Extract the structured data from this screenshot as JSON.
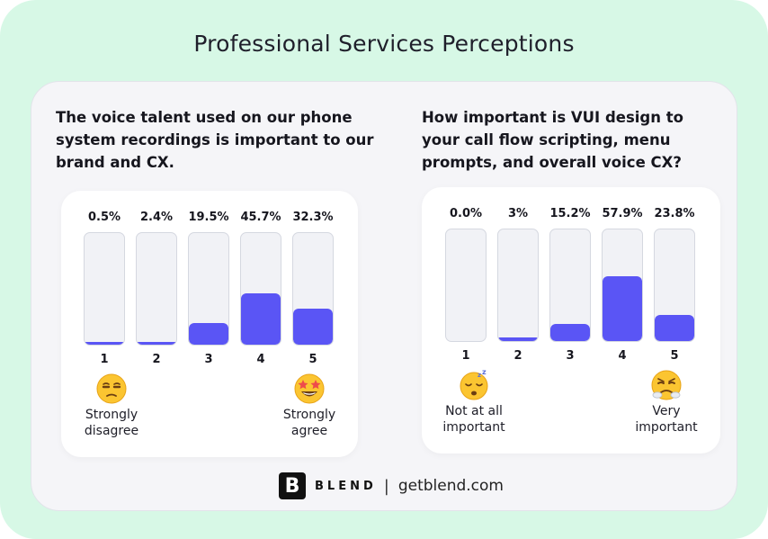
{
  "title": "Professional Services Perceptions",
  "footer": {
    "logo_letter": "B",
    "brand": "BLEND",
    "separator": "|",
    "site": "getblend.com"
  },
  "colors": {
    "accent": "#5a55f5",
    "background": "#d7f8e6",
    "track": "#f1f2f6"
  },
  "chart_data": [
    {
      "type": "bar",
      "title": "The voice talent used on our phone system recordings is important to our brand and CX.",
      "categories": [
        "1",
        "2",
        "3",
        "4",
        "5"
      ],
      "values": [
        0.5,
        2.4,
        19.5,
        45.7,
        32.3
      ],
      "value_labels": [
        "0.5%",
        "2.4%",
        "19.5%",
        "45.7%",
        "32.3%"
      ],
      "ylim": [
        0,
        100
      ],
      "anchors": {
        "low": {
          "label": "Strongly disagree",
          "lines": [
            "Strongly",
            "disagree"
          ],
          "icon": "unamused-face-icon"
        },
        "high": {
          "label": "Strongly agree",
          "lines": [
            "Strongly",
            "agree"
          ],
          "icon": "star-struck-face-icon"
        }
      }
    },
    {
      "type": "bar",
      "title": "How important is VUI design to your call flow scripting, menu prompts, and overall voice CX?",
      "categories": [
        "1",
        "2",
        "3",
        "4",
        "5"
      ],
      "values": [
        0.0,
        3,
        15.2,
        57.9,
        23.8
      ],
      "value_labels": [
        "0.0%",
        "3%",
        "15.2%",
        "57.9%",
        "23.8%"
      ],
      "ylim": [
        0,
        100
      ],
      "anchors": {
        "low": {
          "label": "Not at all important",
          "lines": [
            "Not at all",
            "important"
          ],
          "icon": "sleeping-face-icon"
        },
        "high": {
          "label": "Very important",
          "lines": [
            "Very",
            "important"
          ],
          "icon": "steam-nose-face-icon"
        }
      }
    }
  ],
  "questions": [
    {
      "lines": [
        "The voice talent used on our phone",
        "system recordings is important to our",
        "brand and CX."
      ]
    },
    {
      "lines": [
        "How important is VUI design to",
        "your call flow scripting, menu",
        "prompts, and overall voice CX?"
      ]
    }
  ]
}
